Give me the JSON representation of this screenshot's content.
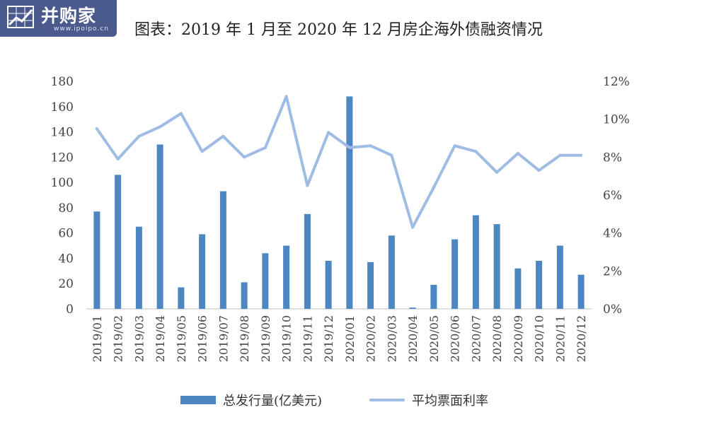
{
  "header": {
    "logo_name": "并购家",
    "logo_url": "www.ipoipo.cn",
    "title": "图表：2019 年 1 月至 2020 年 12 月房企海外债融资情况"
  },
  "chart_data": {
    "type": "bar",
    "title": "图表：2019 年 1 月至 2020 年 12 月房企海外债融资情况",
    "categories": [
      "2019/01",
      "2019/02",
      "2019/03",
      "2019/04",
      "2019/05",
      "2019/06",
      "2019/07",
      "2019/08",
      "2019/09",
      "2019/10",
      "2019/11",
      "2019/12",
      "2020/01",
      "2020/02",
      "2020/03",
      "2020/04",
      "2020/05",
      "2020/06",
      "2020/07",
      "2020/08",
      "2020/09",
      "2020/10",
      "2020/11",
      "2020/12"
    ],
    "series": [
      {
        "name": "总发行量(亿美元)",
        "type": "bar",
        "axis": "left",
        "color": "#4e86c2",
        "values": [
          77,
          106,
          65,
          130,
          17,
          59,
          93,
          21,
          44,
          50,
          75,
          38,
          168,
          37,
          58,
          1,
          19,
          55,
          74,
          67,
          32,
          38,
          50,
          27
        ]
      },
      {
        "name": "平均票面利率",
        "type": "line",
        "axis": "right",
        "color": "#9fbce4",
        "values": [
          9.5,
          7.9,
          9.1,
          9.6,
          10.3,
          8.3,
          9.1,
          8.0,
          8.5,
          11.2,
          6.5,
          9.3,
          8.5,
          8.6,
          8.1,
          4.3,
          6.4,
          8.6,
          8.3,
          7.2,
          8.2,
          7.3,
          8.1,
          8.1
        ]
      }
    ],
    "y_left": {
      "min": 0,
      "max": 180,
      "ticks": [
        "0",
        "20",
        "40",
        "60",
        "80",
        "100",
        "120",
        "140",
        "160",
        "180"
      ]
    },
    "y_right": {
      "min": 0,
      "max": 12,
      "ticks": [
        "0%",
        "2%",
        "4%",
        "6%",
        "8%",
        "10%",
        "12%"
      ]
    },
    "grid": false,
    "legend_position": "bottom"
  }
}
